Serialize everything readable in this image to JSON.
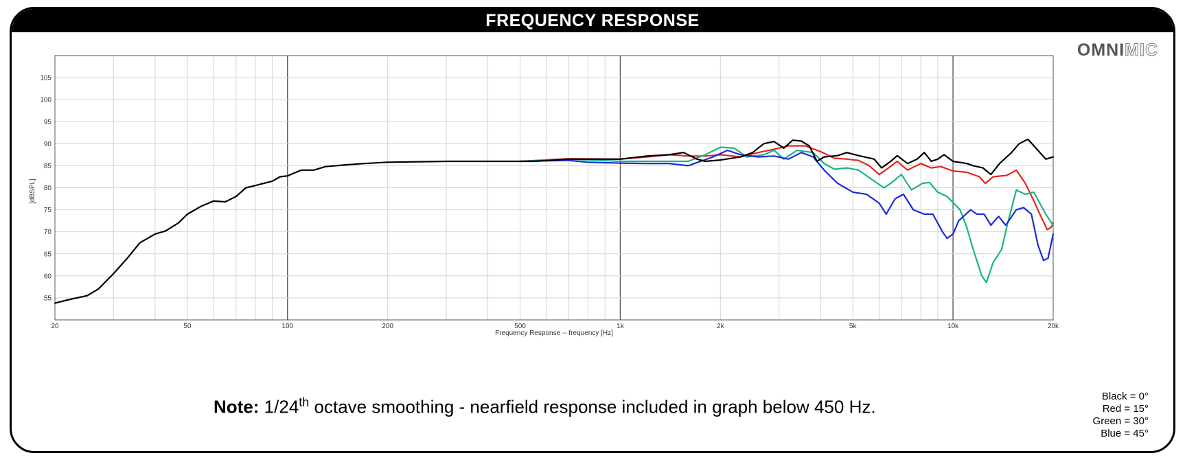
{
  "header": {
    "title": "FREQUENCY RESPONSE"
  },
  "logo": {
    "bold": "OMNI",
    "light": "MIC"
  },
  "note": {
    "label": "Note:",
    "prefix": "1/24",
    "superscript": "th",
    "rest": " octave smoothing - nearfield response included in graph below 450 Hz."
  },
  "legend_key": [
    "Black = 0°",
    "Red = 15°",
    "Green = 30°",
    "Blue = 45°"
  ],
  "chart_data": {
    "type": "line",
    "xscale": "log",
    "xlim": [
      20,
      20000
    ],
    "ylim": [
      50,
      110
    ],
    "xlabel": "Frequency Response -- frequency [Hz]",
    "ylabel": "[dBSPL]",
    "grid": true,
    "x_ticks": [
      {
        "v": 20,
        "label": "20"
      },
      {
        "v": 50,
        "label": "50"
      },
      {
        "v": 100,
        "label": "100"
      },
      {
        "v": 200,
        "label": "200"
      },
      {
        "v": 500,
        "label": "500"
      },
      {
        "v": 1000,
        "label": "1k"
      },
      {
        "v": 2000,
        "label": "2k"
      },
      {
        "v": 5000,
        "label": "5k"
      },
      {
        "v": 10000,
        "label": "10k"
      },
      {
        "v": 20000,
        "label": "20k"
      }
    ],
    "y_ticks": [
      55,
      60,
      65,
      70,
      75,
      80,
      85,
      90,
      95,
      100,
      105
    ],
    "series": [
      {
        "key": "0deg",
        "color": "#000000",
        "points": [
          [
            20,
            53.8
          ],
          [
            22,
            54.6
          ],
          [
            25,
            55.5
          ],
          [
            27,
            57
          ],
          [
            30,
            60.5
          ],
          [
            33,
            64
          ],
          [
            36,
            67.5
          ],
          [
            40,
            69.5
          ],
          [
            43,
            70.2
          ],
          [
            47,
            72
          ],
          [
            50,
            74
          ],
          [
            55,
            75.8
          ],
          [
            60,
            77
          ],
          [
            65,
            76.8
          ],
          [
            70,
            78
          ],
          [
            75,
            80
          ],
          [
            80,
            80.5
          ],
          [
            90,
            81.5
          ],
          [
            95,
            82.5
          ],
          [
            100,
            82.7
          ],
          [
            110,
            84
          ],
          [
            120,
            84
          ],
          [
            130,
            84.8
          ],
          [
            150,
            85.2
          ],
          [
            170,
            85.5
          ],
          [
            200,
            85.8
          ],
          [
            300,
            86
          ],
          [
            450,
            86
          ],
          [
            550,
            86
          ],
          [
            700,
            86.5
          ],
          [
            900,
            86.5
          ],
          [
            1000,
            86.5
          ],
          [
            1200,
            87.2
          ],
          [
            1400,
            87.5
          ],
          [
            1550,
            88
          ],
          [
            1700,
            86.5
          ],
          [
            1800,
            86
          ],
          [
            2000,
            86.3
          ],
          [
            2300,
            87
          ],
          [
            2500,
            88
          ],
          [
            2700,
            90
          ],
          [
            2900,
            90.5
          ],
          [
            3100,
            89
          ],
          [
            3300,
            90.8
          ],
          [
            3500,
            90.6
          ],
          [
            3700,
            89.5
          ],
          [
            3900,
            86
          ],
          [
            4100,
            87
          ],
          [
            4500,
            87.3
          ],
          [
            4800,
            88
          ],
          [
            5200,
            87.3
          ],
          [
            5800,
            86.5
          ],
          [
            6100,
            84.5
          ],
          [
            6500,
            86
          ],
          [
            6800,
            87.3
          ],
          [
            7300,
            85.5
          ],
          [
            7800,
            86.5
          ],
          [
            8200,
            88
          ],
          [
            8600,
            86
          ],
          [
            9000,
            86.5
          ],
          [
            9400,
            87.5
          ],
          [
            10000,
            86
          ],
          [
            11000,
            85.5
          ],
          [
            11500,
            85
          ],
          [
            12300,
            84.5
          ],
          [
            13000,
            83
          ],
          [
            13800,
            85.5
          ],
          [
            15000,
            88
          ],
          [
            15800,
            90
          ],
          [
            16800,
            91
          ],
          [
            18000,
            88.5
          ],
          [
            19000,
            86.5
          ],
          [
            20000,
            87
          ]
        ]
      },
      {
        "key": "15deg",
        "color": "#e8231c",
        "points": [
          [
            500,
            86
          ],
          [
            700,
            86.6
          ],
          [
            1000,
            86.5
          ],
          [
            1200,
            87
          ],
          [
            1400,
            87.5
          ],
          [
            1600,
            87.2
          ],
          [
            1800,
            87.2
          ],
          [
            2000,
            87.5
          ],
          [
            2300,
            87
          ],
          [
            2600,
            88
          ],
          [
            3000,
            89
          ],
          [
            3200,
            89.5
          ],
          [
            3600,
            89.5
          ],
          [
            4000,
            88.2
          ],
          [
            4400,
            86.7
          ],
          [
            4800,
            86.5
          ],
          [
            5200,
            86.2
          ],
          [
            5600,
            85
          ],
          [
            6000,
            83
          ],
          [
            6400,
            84.5
          ],
          [
            6800,
            86
          ],
          [
            7300,
            84
          ],
          [
            8000,
            85.5
          ],
          [
            8600,
            84.5
          ],
          [
            9200,
            84.8
          ],
          [
            10000,
            83.8
          ],
          [
            11000,
            83.5
          ],
          [
            12000,
            82.5
          ],
          [
            12500,
            81
          ],
          [
            13200,
            82.5
          ],
          [
            14500,
            82.8
          ],
          [
            15500,
            84
          ],
          [
            16500,
            81
          ],
          [
            17500,
            77
          ],
          [
            18500,
            73
          ],
          [
            19200,
            70.5
          ],
          [
            19700,
            71
          ],
          [
            20000,
            72
          ]
        ]
      },
      {
        "key": "30deg",
        "color": "#19b486",
        "points": [
          [
            500,
            86
          ],
          [
            700,
            86.5
          ],
          [
            1000,
            86
          ],
          [
            1200,
            86
          ],
          [
            1400,
            86
          ],
          [
            1600,
            86
          ],
          [
            1800,
            87.5
          ],
          [
            2000,
            89.2
          ],
          [
            2200,
            89
          ],
          [
            2400,
            87
          ],
          [
            2700,
            87.5
          ],
          [
            2900,
            88.5
          ],
          [
            3100,
            86.5
          ],
          [
            3400,
            88.5
          ],
          [
            3800,
            88
          ],
          [
            4100,
            85.5
          ],
          [
            4400,
            84.2
          ],
          [
            4800,
            84.5
          ],
          [
            5200,
            84
          ],
          [
            5800,
            81.5
          ],
          [
            6200,
            80
          ],
          [
            6500,
            81
          ],
          [
            7000,
            83
          ],
          [
            7500,
            79.5
          ],
          [
            8100,
            81
          ],
          [
            8500,
            81.2
          ],
          [
            9000,
            79
          ],
          [
            9600,
            78
          ],
          [
            10500,
            75
          ],
          [
            11000,
            71
          ],
          [
            11500,
            66
          ],
          [
            12200,
            60
          ],
          [
            12600,
            58.5
          ],
          [
            13200,
            63
          ],
          [
            14000,
            66
          ],
          [
            14600,
            72
          ],
          [
            15500,
            79.5
          ],
          [
            16500,
            78.5
          ],
          [
            17500,
            79
          ],
          [
            19000,
            74
          ],
          [
            20000,
            71.5
          ]
        ]
      },
      {
        "key": "45deg",
        "color": "#1a2bd6",
        "points": [
          [
            500,
            86
          ],
          [
            700,
            86.2
          ],
          [
            800,
            85.8
          ],
          [
            1000,
            85.6
          ],
          [
            1200,
            85.5
          ],
          [
            1400,
            85.5
          ],
          [
            1600,
            85
          ],
          [
            1900,
            87
          ],
          [
            2100,
            88.5
          ],
          [
            2300,
            87.5
          ],
          [
            2600,
            87
          ],
          [
            2900,
            87.2
          ],
          [
            3200,
            86.5
          ],
          [
            3500,
            88
          ],
          [
            3800,
            87
          ],
          [
            4100,
            84
          ],
          [
            4500,
            81
          ],
          [
            5000,
            79
          ],
          [
            5500,
            78.5
          ],
          [
            6000,
            76.5
          ],
          [
            6300,
            74
          ],
          [
            6700,
            77.5
          ],
          [
            7100,
            78.5
          ],
          [
            7600,
            75
          ],
          [
            8200,
            74
          ],
          [
            8700,
            74
          ],
          [
            9300,
            70
          ],
          [
            9600,
            68.5
          ],
          [
            10000,
            69.5
          ],
          [
            10400,
            72.5
          ],
          [
            11300,
            75
          ],
          [
            11800,
            74
          ],
          [
            12400,
            74
          ],
          [
            13000,
            71.5
          ],
          [
            13700,
            73.5
          ],
          [
            14400,
            71.5
          ],
          [
            15500,
            75
          ],
          [
            16300,
            75.5
          ],
          [
            17200,
            74
          ],
          [
            18000,
            67
          ],
          [
            18700,
            63.5
          ],
          [
            19300,
            64
          ],
          [
            20000,
            69.5
          ]
        ]
      }
    ]
  }
}
